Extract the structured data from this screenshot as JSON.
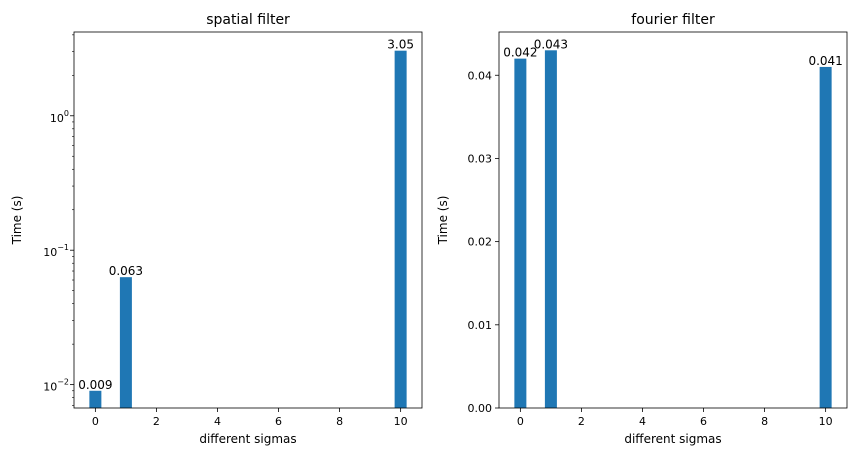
{
  "chart_data": [
    {
      "type": "bar",
      "title": "spatial filter",
      "xlabel": "different sigmas",
      "ylabel": "Time (s)",
      "yscale": "log",
      "x": [
        0,
        1,
        10
      ],
      "values": [
        0.009,
        0.063,
        3.05
      ],
      "data_labels": [
        "0.009",
        "0.063",
        "3.05"
      ],
      "xlim": [
        -0.7,
        10.7
      ],
      "ylim": [
        0.0067,
        4.2
      ],
      "xticks": [
        0,
        2,
        4,
        6,
        8,
        10
      ],
      "xtick_labels": [
        "0",
        "2",
        "4",
        "6",
        "8",
        "10"
      ],
      "yticks": [
        0.01,
        0.1,
        1
      ],
      "ytick_labels": [
        "10",
        "10",
        "10"
      ],
      "ytick_exponents": [
        "−2",
        "−1",
        "0"
      ],
      "color": "#1f77b4",
      "grid": false
    },
    {
      "type": "bar",
      "title": "fourier filter",
      "xlabel": "different sigmas",
      "ylabel": "Time (s)",
      "yscale": "linear",
      "x": [
        0,
        1,
        10
      ],
      "values": [
        0.042,
        0.043,
        0.041
      ],
      "data_labels": [
        "0.042",
        "0.043",
        "0.041"
      ],
      "xlim": [
        -0.7,
        10.7
      ],
      "ylim": [
        0,
        0.0452
      ],
      "xticks": [
        0,
        2,
        4,
        6,
        8,
        10
      ],
      "xtick_labels": [
        "0",
        "2",
        "4",
        "6",
        "8",
        "10"
      ],
      "yticks": [
        0,
        0.01,
        0.02,
        0.03,
        0.04
      ],
      "ytick_labels": [
        "0.00",
        "0.01",
        "0.02",
        "0.03",
        "0.04"
      ],
      "color": "#1f77b4",
      "grid": false
    }
  ]
}
